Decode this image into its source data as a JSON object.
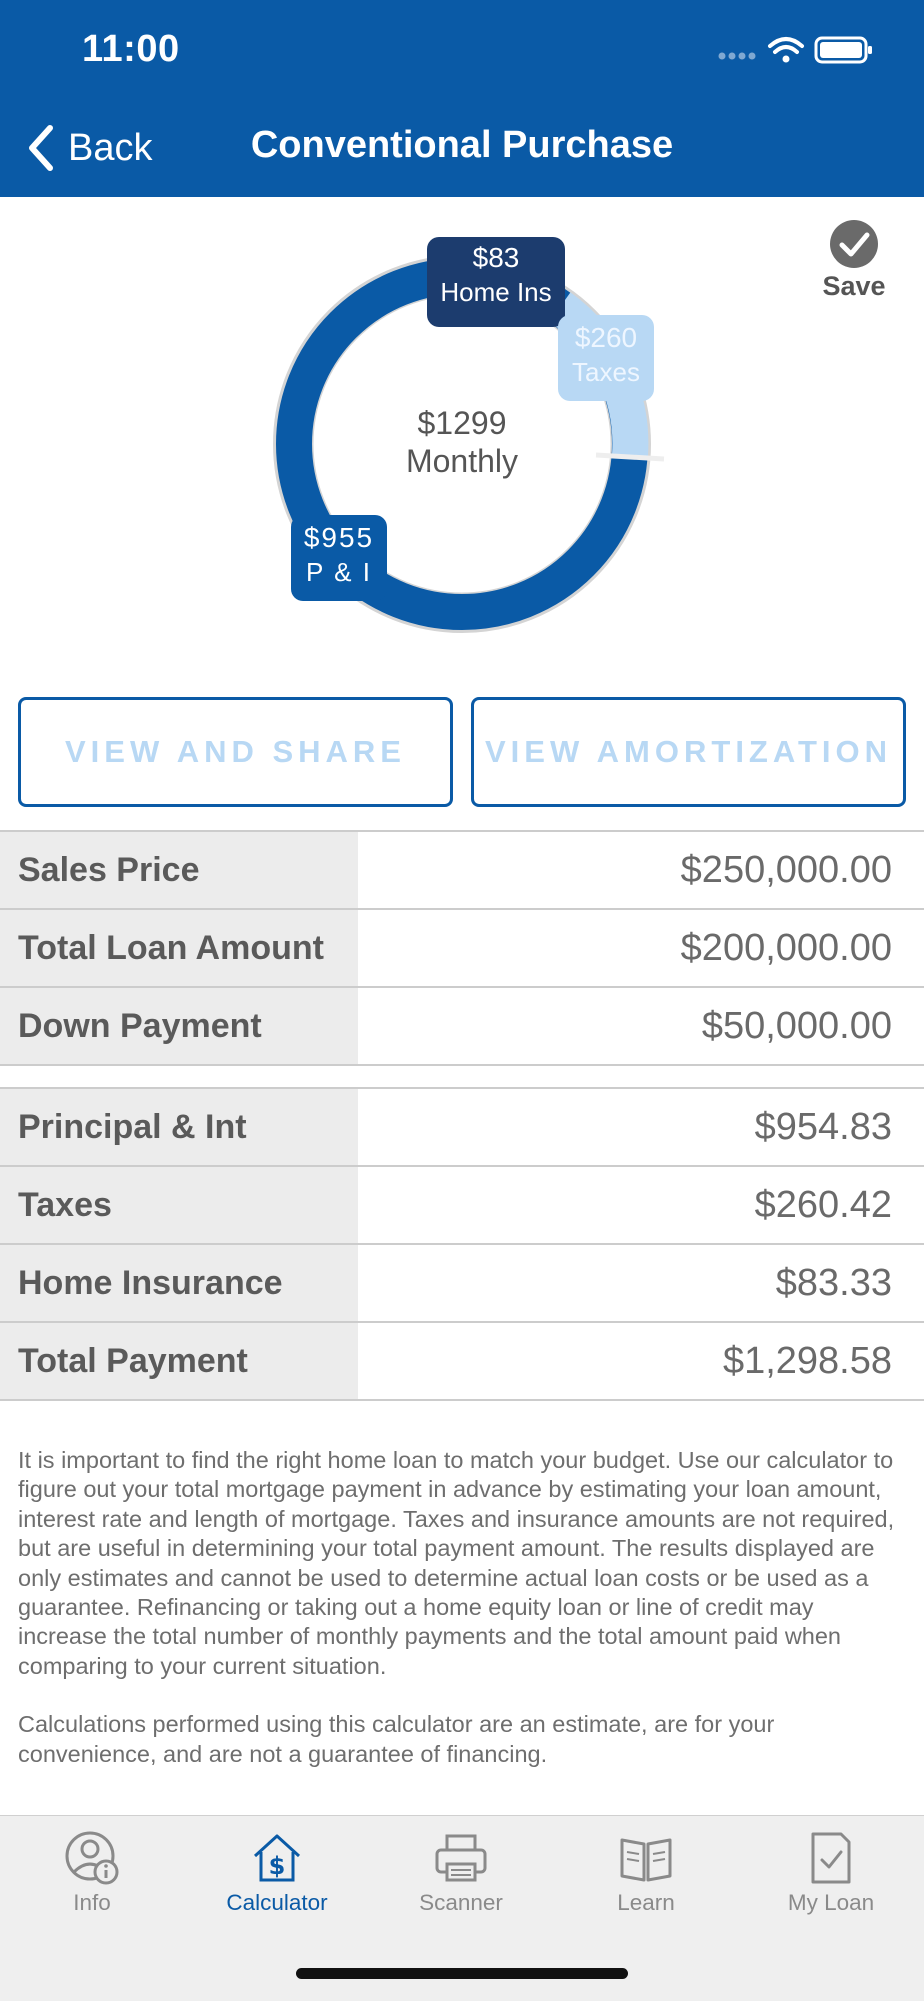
{
  "status_bar": {
    "time": "11:00"
  },
  "nav": {
    "back_label": "Back",
    "title": "Conventional Purchase"
  },
  "save_label": "Save",
  "chart": {
    "center_amount": "$1299",
    "center_label": "Monthly",
    "segments": [
      {
        "amount": "$83",
        "label": "Home Ins",
        "color": "#1c3c6e"
      },
      {
        "amount": "$260",
        "label": "Taxes",
        "color": "#b8d8f4"
      },
      {
        "amount": "$955",
        "label": "P & I",
        "color": "#0a5aa6"
      }
    ]
  },
  "buttons": {
    "view_share": "VIEW AND SHARE",
    "view_amortization": "VIEW AMORTIZATION"
  },
  "loan_table": [
    {
      "label": "Sales Price",
      "value": "$250,000.00"
    },
    {
      "label": "Total Loan Amount",
      "value": "$200,000.00"
    },
    {
      "label": "Down Payment",
      "value": "$50,000.00"
    }
  ],
  "payment_table": [
    {
      "label": "Principal & Int",
      "value": "$954.83"
    },
    {
      "label": "Taxes",
      "value": "$260.42"
    },
    {
      "label": "Home Insurance",
      "value": "$83.33"
    },
    {
      "label": "Total Payment",
      "value": "$1,298.58"
    }
  ],
  "disclaimer": {
    "p1": "It is important to find the right home loan to match your budget. Use our calculator to figure out your total mortgage payment in advance by estimating your loan amount, interest rate and length of mortgage. Taxes and insurance amounts are not required, but are useful in determining your total payment amount.  The results displayed are only estimates and cannot be used to determine actual loan costs or be used as a guarantee. Refinancing or taking out a home equity loan or line of credit may increase the total number of monthly payments and the total amount paid when comparing to your current situation.",
    "p2": "Calculations performed using this calculator are an estimate, are for your convenience, and are not a guarantee of financing."
  },
  "tabs": [
    {
      "label": "Info",
      "icon": "user-info-icon",
      "active": false
    },
    {
      "label": "Calculator",
      "icon": "house-dollar-icon",
      "active": true
    },
    {
      "label": "Scanner",
      "icon": "printer-icon",
      "active": false
    },
    {
      "label": "Learn",
      "icon": "book-icon",
      "active": false
    },
    {
      "label": "My Loan",
      "icon": "document-check-icon",
      "active": false
    }
  ],
  "colors": {
    "brand": "#0a5aa6",
    "accent_light": "#b8d8f4",
    "dark_navy": "#1c3c6e"
  }
}
